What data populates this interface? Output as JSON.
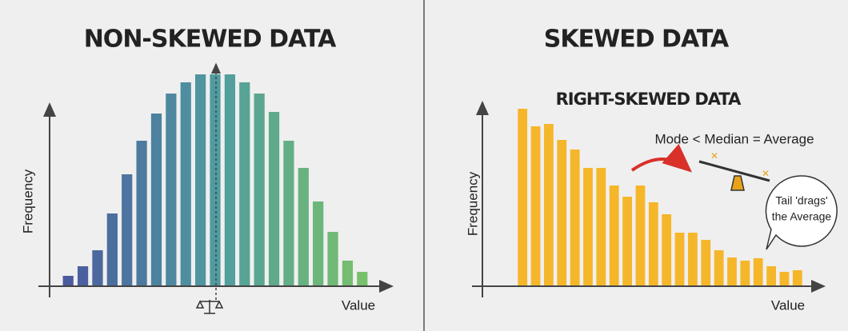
{
  "chart_data": [
    {
      "type": "bar",
      "title": "NON-SKEWED DATA",
      "y_label": "Frequency",
      "x_label": "Value",
      "values": [
        13,
        25,
        45,
        91,
        140,
        182,
        216,
        241,
        255,
        265,
        265,
        265,
        255,
        241,
        218,
        182,
        148,
        106,
        68,
        32,
        18
      ],
      "gradient": [
        "#4b5b9f",
        "#4f9ba0",
        "#78c16c"
      ],
      "ylim": [
        0,
        280
      ]
    },
    {
      "type": "bar",
      "title": "SKEWED DATA",
      "subtitle": "RIGHT-SKEWED DATA",
      "y_label": "Frequency",
      "x_label": "Value",
      "annotation": "Mode < Median = Average",
      "callout": [
        "Tail 'drags'",
        "the Average"
      ],
      "values": [
        222,
        200,
        203,
        183,
        171,
        148,
        148,
        126,
        112,
        126,
        105,
        90,
        67,
        67,
        58,
        45,
        36,
        32,
        35,
        25,
        18,
        20
      ],
      "color": "#f6b62a",
      "ylim": [
        0,
        280
      ]
    }
  ]
}
